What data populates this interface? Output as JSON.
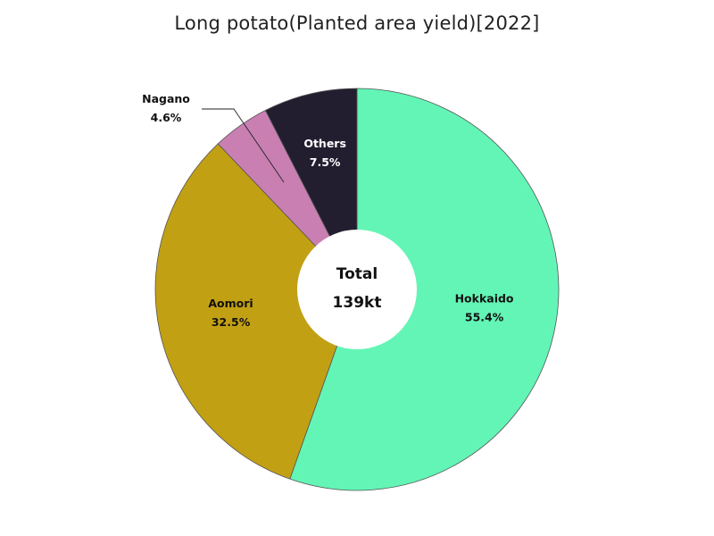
{
  "chart_data": {
    "type": "pie",
    "title": "Long potato(Planted area yield)[2022]",
    "donut": true,
    "center_label": "Total",
    "center_value": "139kt",
    "slices": [
      {
        "label": "Hokkaido",
        "value": 55.4,
        "value_label": "55.4%",
        "color": "#63f5b6",
        "text_color": "#111111"
      },
      {
        "label": "Aomori",
        "value": 32.5,
        "value_label": "32.5%",
        "color": "#c2a014",
        "text_color": "#111111"
      },
      {
        "label": "Nagano",
        "value": 4.6,
        "value_label": "4.6%",
        "color": "#c97fb2",
        "text_color": "#111111"
      },
      {
        "label": "Others",
        "value": 7.5,
        "value_label": "7.5%",
        "color": "#221e30",
        "text_color": "#ffffff"
      }
    ]
  }
}
